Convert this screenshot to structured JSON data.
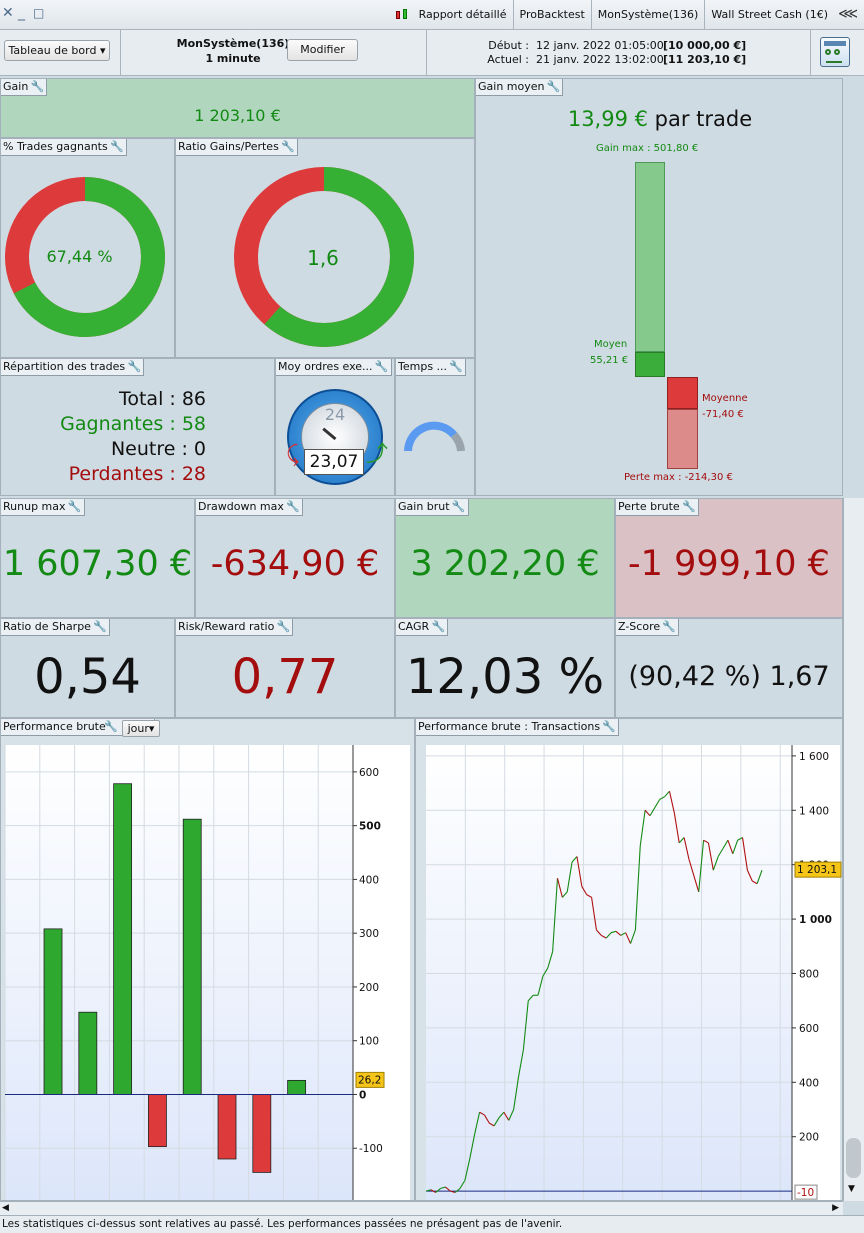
{
  "window": {
    "tabs": [
      "Rapport détaillé",
      "ProBacktest",
      "MonSystème(136)",
      "Wall Street Cash (1€)"
    ]
  },
  "header": {
    "dashboard_label": "Tableau de bord",
    "system": "MonSystème(136)",
    "timeframe": "1 minute",
    "modify_label": "Modifier",
    "start_label": "Début :",
    "start_date": "12 janv. 2022 01:05:00",
    "start_value": "[10 000,00 €]",
    "current_label": "Actuel :",
    "current_date": "21 janv. 2022 13:02:00",
    "current_value": "[11 203,10 €]"
  },
  "gain": {
    "title": "Gain",
    "value": "1 203,10 €"
  },
  "gain_moyen": {
    "title": "Gain moyen",
    "value": "13,99 €",
    "suffix": "par trade",
    "gain_max_label": "Gain max : 501,80 €",
    "moyen_label": "Moyen",
    "moyen_value": "55,21 €",
    "moyenne_label": "Moyenne",
    "moyenne_value": "-71,40 €",
    "perte_max_label": "Perte max : -214,30 €"
  },
  "trades_gagnants": {
    "title": "% Trades gagnants",
    "value": "67,44 %",
    "fraction": 0.6744
  },
  "ratio_gp": {
    "title": "Ratio Gains/Pertes",
    "value": "1,6",
    "fraction": 0.615
  },
  "repartition": {
    "title": "Répartition des trades",
    "total_label": "Total : 86",
    "gagnantes_label": "Gagnantes : 58",
    "neutre_label": "Neutre : 0",
    "perdantes_label": "Perdantes : 28"
  },
  "moy_ordres": {
    "title": "Moy ordres exe...",
    "clock_label": "24",
    "value": "23,07"
  },
  "temps": {
    "title": "Temps ..."
  },
  "runup": {
    "title": "Runup max",
    "value": "1 607,30 €"
  },
  "drawdown": {
    "title": "Drawdown max",
    "value": "-634,90 €"
  },
  "gain_brut": {
    "title": "Gain brut",
    "value": "3 202,20 €"
  },
  "perte_brute": {
    "title": "Perte brute",
    "value": "-1 999,10 €"
  },
  "sharpe": {
    "title": "Ratio de Sharpe",
    "value": "0,54"
  },
  "risk": {
    "title": "Risk/Reward ratio",
    "value": "0,77"
  },
  "cagr": {
    "title": "CAGR",
    "value": "12,03 %"
  },
  "zscore": {
    "title": "Z-Score",
    "value": "(90,42 %) 1,67"
  },
  "perf_brute": {
    "title": "Performance brute",
    "period": "jour",
    "last_label": "26,2"
  },
  "perf_trans": {
    "title": "Performance brute : Transactions",
    "last_label": "1 203,1",
    "zero_label": "-10"
  },
  "footer": {
    "disclaimer": "Les statistiques ci-dessus sont relatives au passé. Les performances passées ne présagent pas de l'avenir."
  },
  "chart_data": [
    {
      "type": "bar",
      "ylim": [
        -200,
        650
      ],
      "yticks": [
        -100,
        0,
        100,
        200,
        300,
        400,
        500,
        600
      ],
      "values": [
        308,
        153,
        578,
        -97,
        512,
        -120,
        -145,
        26.2
      ],
      "colors": {
        "positive": "#2fa82f",
        "negative": "#dd3b3b"
      }
    },
    {
      "type": "line",
      "ylim": [
        -40,
        1640
      ],
      "yticks": [
        200,
        400,
        600,
        800,
        1000,
        1200,
        1400,
        1600
      ],
      "values": [
        0,
        5,
        -5,
        10,
        15,
        0,
        -5,
        10,
        40,
        120,
        210,
        290,
        280,
        250,
        240,
        270,
        290,
        260,
        300,
        420,
        520,
        700,
        720,
        720,
        790,
        820,
        880,
        1150,
        1080,
        1100,
        1210,
        1230,
        1120,
        1090,
        1080,
        960,
        940,
        930,
        950,
        955,
        940,
        950,
        910,
        960,
        1270,
        1400,
        1380,
        1410,
        1440,
        1450,
        1470,
        1390,
        1280,
        1300,
        1220,
        1160,
        1100,
        1290,
        1280,
        1180,
        1230,
        1260,
        1290,
        1240,
        1290,
        1300,
        1180,
        1140,
        1130,
        1180
      ],
      "colors": {
        "up": "#138a13",
        "down": "#b01010"
      }
    }
  ]
}
